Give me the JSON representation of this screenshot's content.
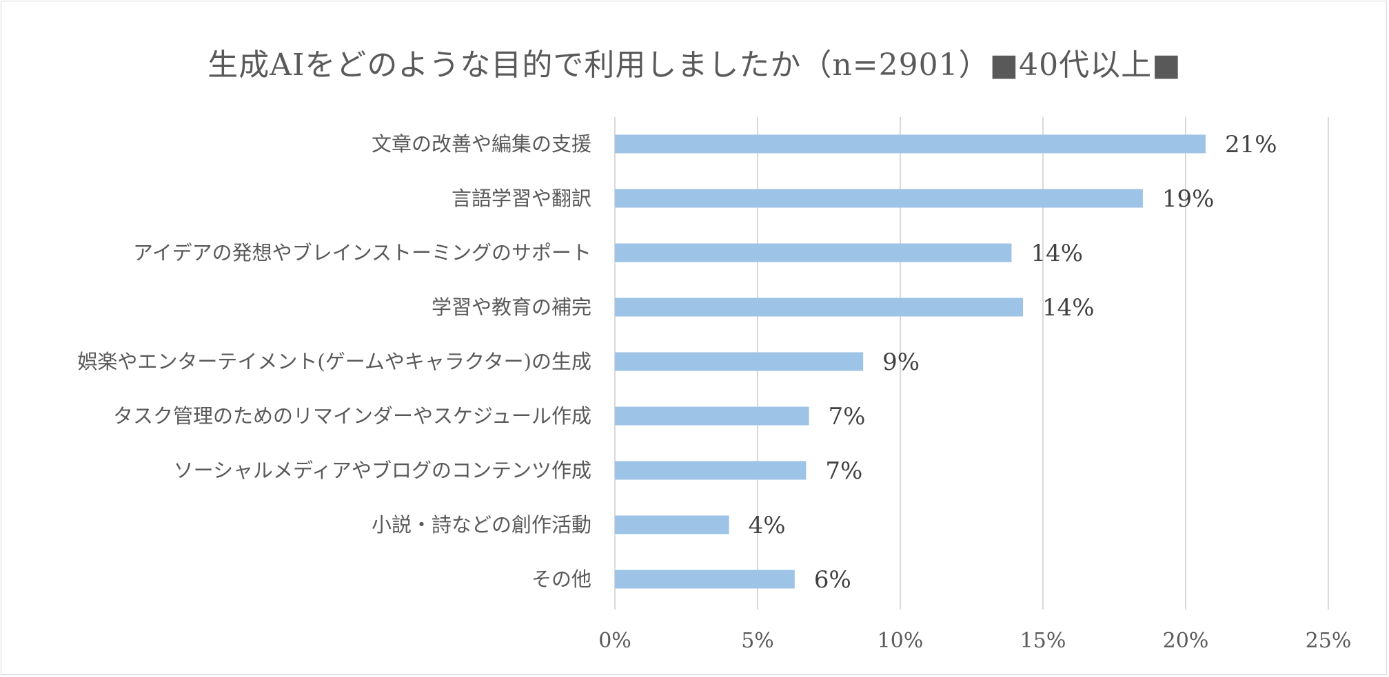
{
  "chart_data": {
    "type": "bar",
    "orientation": "horizontal",
    "title": "生成AIをどのような目的で利用しましたか（n=2901）■40代以上■",
    "categories": [
      "文章の改善や編集の支援",
      "言語学習や翻訳",
      "アイデアの発想やブレインストーミングのサポート",
      "学習や教育の補完",
      "娯楽やエンターテイメント(ゲームやキャラクター)の生成",
      "タスク管理のためのリマインダーやスケジュール作成",
      "ソーシャルメディアやブログのコンテンツ作成",
      "小説・詩などの創作活動",
      "その他"
    ],
    "values": [
      20.7,
      18.5,
      13.9,
      14.3,
      8.7,
      6.8,
      6.7,
      4.0,
      6.3
    ],
    "data_labels": [
      "21%",
      "19%",
      "14%",
      "14%",
      "9%",
      "7%",
      "7%",
      "4%",
      "6%"
    ],
    "x_ticks": [
      "0%",
      "5%",
      "10%",
      "15%",
      "20%",
      "25%"
    ],
    "xlim": [
      0,
      25
    ],
    "grid": "vertical",
    "legend": "none",
    "bar_color": "#9dc3e6",
    "grid_color": "#d9d9d9"
  }
}
